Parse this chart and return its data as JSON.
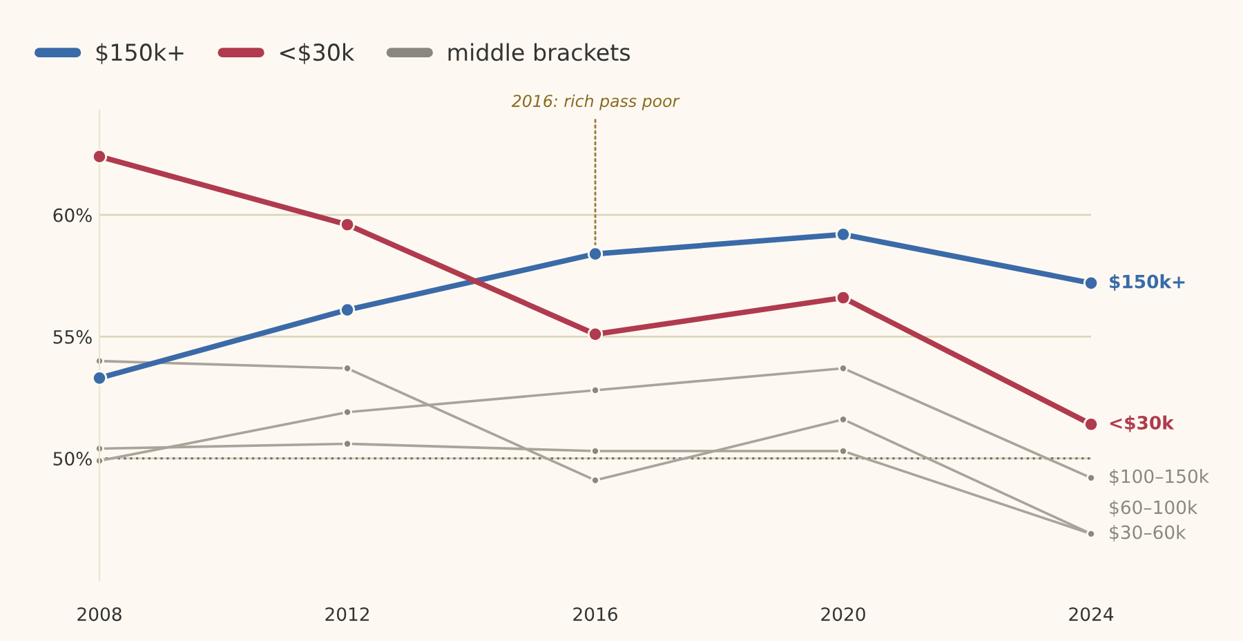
{
  "chart_data": {
    "type": "line",
    "x": [
      2008,
      2012,
      2016,
      2020,
      2024
    ],
    "series": [
      {
        "name": "$100–150k",
        "color": "#a8a49a",
        "values": [
          49.9,
          51.9,
          52.8,
          53.7,
          49.2
        ]
      },
      {
        "name": "$30–60k",
        "color": "#a8a49a",
        "values": [
          54.0,
          53.7,
          49.1,
          51.6,
          46.9
        ]
      },
      {
        "name": "$60–100k",
        "color": "#a8a49a",
        "values": [
          50.4,
          50.6,
          50.3,
          50.3,
          46.9
        ]
      },
      {
        "name": "$150k+",
        "color": "#3a6aa8",
        "values": [
          53.3,
          56.1,
          58.4,
          59.2,
          57.2
        ]
      },
      {
        "name": "<$30k",
        "color": "#b03a4e",
        "values": [
          62.4,
          59.6,
          55.1,
          56.6,
          51.4
        ]
      }
    ],
    "xlim": [
      2008,
      2024
    ],
    "xticks": [
      2008,
      2012,
      2016,
      2020,
      2024
    ],
    "ylim": [
      45,
      64.3
    ],
    "yticks": [
      {
        "value": 50,
        "label": "50%"
      },
      {
        "value": 55,
        "label": "55%"
      },
      {
        "value": 60,
        "label": "60%"
      }
    ],
    "ref_lines": [
      {
        "axis": "y",
        "value": 50,
        "label": null,
        "color": "#777368",
        "line_style": "dotted"
      }
    ],
    "annotations": [
      {
        "text": "2016: rich pass poor",
        "x": 2016,
        "y": 58.4
      },
      "middle brackets"
    ],
    "grid": "y",
    "legend": "top left",
    "marker": "circle",
    "line_style": "solid"
  }
}
